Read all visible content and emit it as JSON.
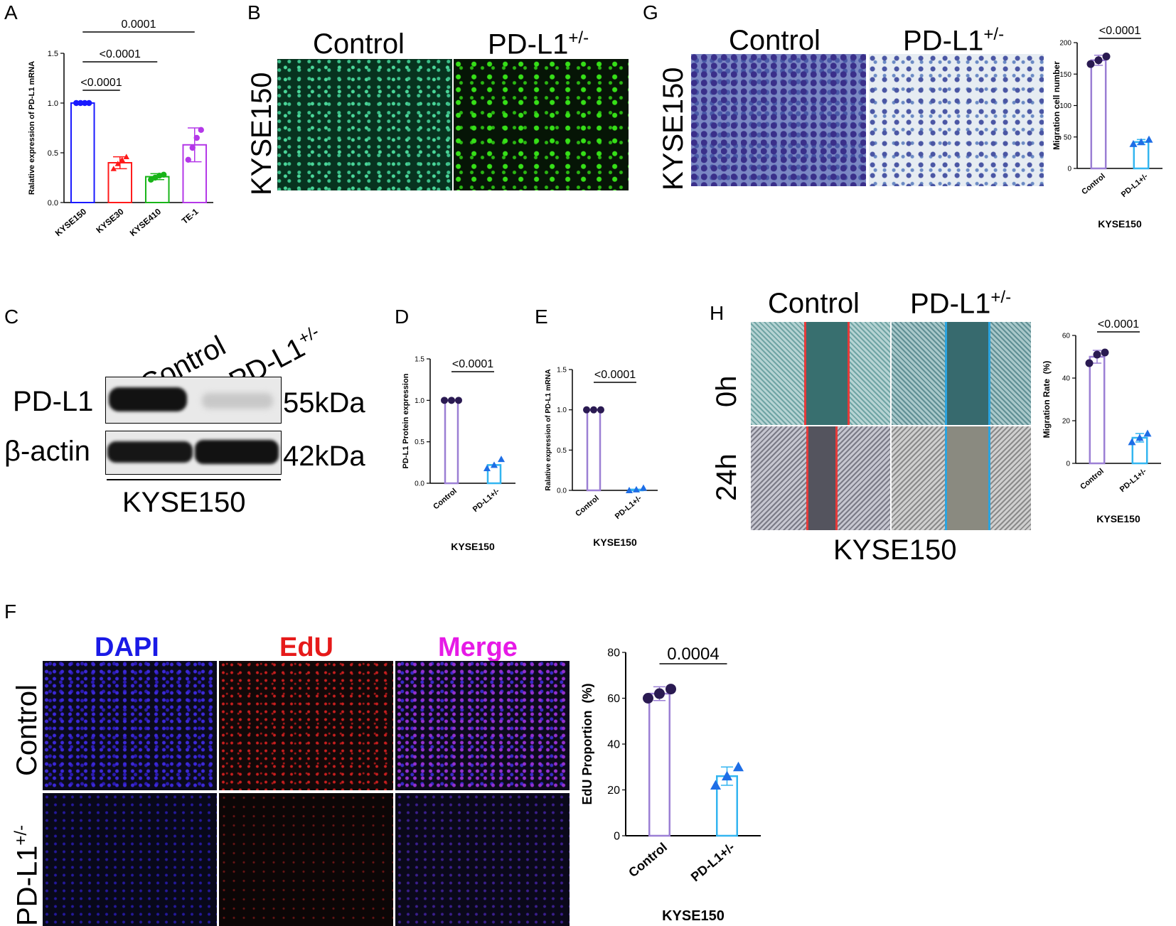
{
  "panels": {
    "A": {
      "letter": "A",
      "chart_data": {
        "type": "bar",
        "categories": [
          "KYSE150",
          "KYSE30",
          "KYSE410",
          "TE-1"
        ],
        "values": [
          1.0,
          0.4,
          0.26,
          0.58
        ],
        "errors": [
          0.01,
          0.06,
          0.03,
          0.17
        ],
        "points": [
          [
            1.0,
            1.0,
            1.0,
            1.0
          ],
          [
            0.34,
            0.39,
            0.43,
            0.46
          ],
          [
            0.23,
            0.25,
            0.27,
            0.28
          ],
          [
            0.43,
            0.55,
            0.65,
            0.73
          ]
        ],
        "colors": [
          "#1a1aff",
          "#ff1a1a",
          "#18b418",
          "#b438e8"
        ],
        "ylabel": "Ralative expression of PD-L1 mRNA",
        "ylim": [
          0,
          1.5
        ],
        "yticks": [
          "0.0",
          "0.5",
          "1.0",
          "1.5"
        ],
        "comparisons": [
          "<0.0001",
          "<0.0001",
          "0.0001"
        ]
      }
    },
    "B": {
      "letter": "B",
      "col_control": "Control",
      "col_pdl1": "PD-L1",
      "sup": "+/-",
      "row_label": "KYSE150"
    },
    "C": {
      "letter": "C",
      "col_control": "Control",
      "col_pdl1": "PD-L1",
      "sup": "+/-",
      "row1": "PD-L1",
      "row2": "β-actin",
      "mw1": "55kDa",
      "mw2": "42kDa",
      "cell_line": "KYSE150"
    },
    "D": {
      "letter": "D",
      "chart_data": {
        "type": "bar",
        "categories": [
          "Control",
          "PD-L1+/-"
        ],
        "values": [
          1.0,
          0.22
        ],
        "points": [
          [
            1.0,
            1.0,
            1.0
          ],
          [
            0.18,
            0.22,
            0.29
          ]
        ],
        "colors": [
          "#9b7fd4",
          "#33b5f0"
        ],
        "ylabel": "PD-L1 Protein expression",
        "xlabel": "KYSE150",
        "ylim": [
          0,
          1.5
        ],
        "yticks": [
          "0.0",
          "0.5",
          "1.0",
          "1.5"
        ],
        "pvalue": "<0.0001"
      }
    },
    "E": {
      "letter": "E",
      "chart_data": {
        "type": "bar",
        "categories": [
          "Control",
          "PD-L1+/-"
        ],
        "values": [
          1.0,
          0.01
        ],
        "points": [
          [
            1.0,
            1.0,
            1.0
          ],
          [
            0.0,
            0.01,
            0.03
          ]
        ],
        "colors": [
          "#9b7fd4",
          "#33b5f0"
        ],
        "ylabel": "Ralative expression of PD-L1 mRNA",
        "xlabel": "KYSE150",
        "ylim": [
          0,
          1.5
        ],
        "yticks": [
          "0.0",
          "0.5",
          "1.0",
          "1.5"
        ],
        "pvalue": "<0.0001"
      }
    },
    "F": {
      "letter": "F",
      "col_dapi": "DAPI",
      "col_edu": "EdU",
      "col_merge": "Merge",
      "row_control": "Control",
      "row_pdl1": "PD-L1",
      "sup": "+/-",
      "chart_data": {
        "type": "bar",
        "categories": [
          "Control",
          "PD-L1+/-"
        ],
        "values": [
          62,
          26
        ],
        "errors": [
          3,
          4
        ],
        "points": [
          [
            60,
            62,
            64
          ],
          [
            22,
            26,
            30
          ]
        ],
        "colors": [
          "#9b7fd4",
          "#33b5f0"
        ],
        "ylabel": "EdU Proportion  (%)",
        "xlabel": "KYSE150",
        "ylim": [
          0,
          80
        ],
        "yticks": [
          "0",
          "20",
          "40",
          "60",
          "80"
        ],
        "pvalue": "0.0004"
      }
    },
    "G": {
      "letter": "G",
      "col_control": "Control",
      "col_pdl1": "PD-L1",
      "sup": "+/-",
      "row_label": "KYSE150",
      "chart_data": {
        "type": "bar",
        "categories": [
          "Control",
          "PD-L1+/-"
        ],
        "values": [
          172,
          42
        ],
        "errors": [
          8,
          4
        ],
        "points": [
          [
            166,
            172,
            178
          ],
          [
            39,
            42,
            46
          ]
        ],
        "colors": [
          "#9b7fd4",
          "#33b5f0"
        ],
        "ylabel": "Migration cell number",
        "xlabel": "KYSE150",
        "ylim": [
          0,
          200
        ],
        "yticks": [
          "0",
          "50",
          "100",
          "150",
          "200"
        ],
        "pvalue": "<0.0001"
      }
    },
    "H": {
      "letter": "H",
      "col_control": "Control",
      "col_pdl1": "PD-L1",
      "sup": "+/-",
      "row_0h": "0h",
      "row_24h": "24h",
      "cell_line": "KYSE150",
      "chart_data": {
        "type": "bar",
        "categories": [
          "Control",
          "PD-L1+/-"
        ],
        "values": [
          50,
          12
        ],
        "errors": [
          3,
          2
        ],
        "points": [
          [
            47,
            51,
            52
          ],
          [
            10,
            12,
            14
          ]
        ],
        "colors": [
          "#9b7fd4",
          "#33b5f0"
        ],
        "ylabel": "Migration Rate  (%)",
        "xlabel": "KYSE150",
        "ylim": [
          0,
          60
        ],
        "yticks": [
          "0",
          "20",
          "40",
          "60"
        ],
        "pvalue": "<0.0001"
      }
    }
  }
}
